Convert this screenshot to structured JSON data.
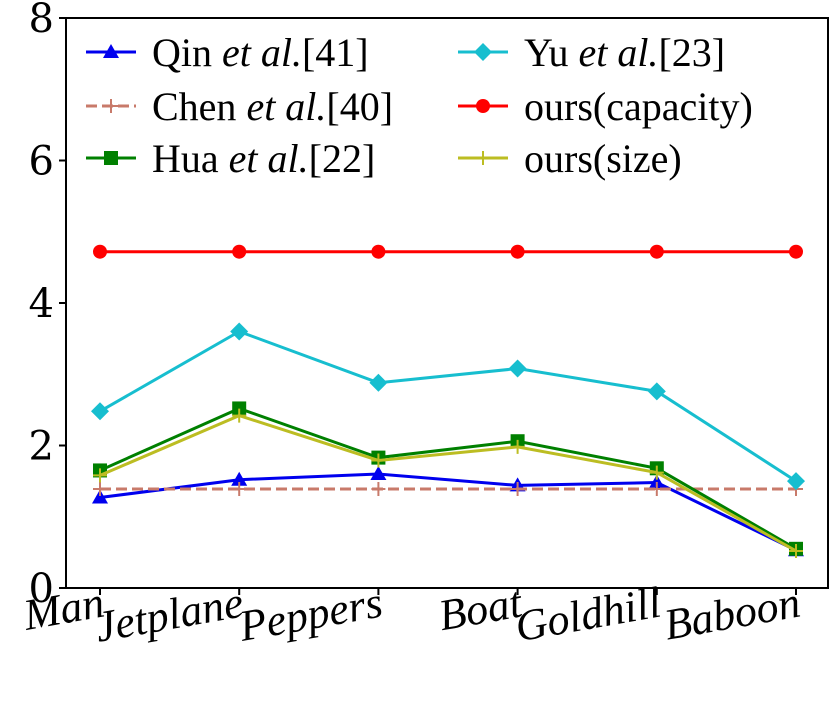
{
  "chart_data": {
    "type": "line",
    "categories": [
      "Man",
      "Jetplane",
      "Peppers",
      "Boat",
      "Goldhill",
      "Baboon"
    ],
    "ylim": [
      0,
      8
    ],
    "yticks": [
      0,
      2,
      4,
      6,
      8
    ],
    "grid": false,
    "legend_position": "top",
    "series": [
      {
        "name": "Qin et al.[41]",
        "name_parts": [
          "Qin ",
          "et al.",
          "[41]"
        ],
        "color": "#0000ee",
        "marker": "triangle",
        "dash": "solid",
        "values": [
          1.27,
          1.52,
          1.6,
          1.44,
          1.48,
          0.53
        ]
      },
      {
        "name": "Chen et al.[40]",
        "name_parts": [
          "Chen ",
          "et al.",
          "[40]"
        ],
        "color": "#c87a6a",
        "marker": "plus",
        "dash": "dashed",
        "values": [
          1.39,
          1.39,
          1.39,
          1.39,
          1.39,
          1.39
        ]
      },
      {
        "name": "Hua et al.[22]",
        "name_parts": [
          "Hua ",
          "et al.",
          "[22]"
        ],
        "color": "#008000",
        "marker": "square",
        "dash": "solid",
        "values": [
          1.65,
          2.52,
          1.83,
          2.06,
          1.68,
          0.55
        ]
      },
      {
        "name": "Yu et al.[23]",
        "name_parts": [
          "Yu ",
          "et al.",
          "[23]"
        ],
        "color": "#17becf",
        "marker": "diamond",
        "dash": "solid",
        "values": [
          2.48,
          3.6,
          2.88,
          3.08,
          2.76,
          1.5
        ]
      },
      {
        "name": "ours(capacity)",
        "name_parts": [
          "ours(capacity)",
          "",
          ""
        ],
        "color": "#ff0000",
        "marker": "circle",
        "dash": "solid",
        "values": [
          4.72,
          4.72,
          4.72,
          4.72,
          4.72,
          4.72
        ]
      },
      {
        "name": "ours(size)",
        "name_parts": [
          "ours(size)",
          "",
          ""
        ],
        "color": "#bcbd22",
        "marker": "plus",
        "dash": "solid",
        "values": [
          1.58,
          2.42,
          1.79,
          1.98,
          1.62,
          0.52
        ]
      }
    ]
  }
}
